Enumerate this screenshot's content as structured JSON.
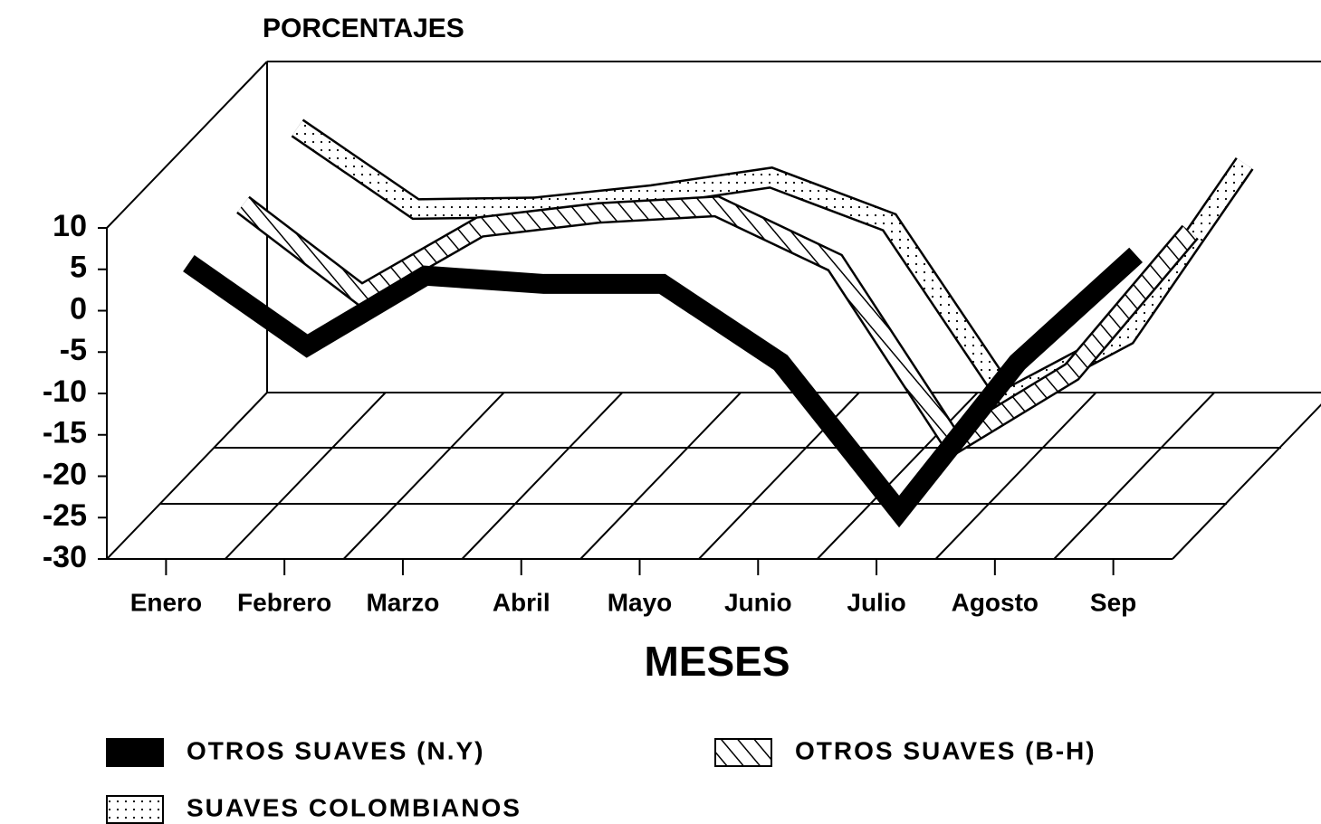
{
  "chart_data": {
    "type": "line3d",
    "title": "PORCENTAJES",
    "x_label": "MESES",
    "categories": [
      "Enero",
      "Febrero",
      "Marzo",
      "Abril",
      "Mayo",
      "Junio",
      "Julio",
      "Agosto",
      "Sep"
    ],
    "ylim": [
      -30,
      10
    ],
    "yticks": [
      10,
      5,
      0,
      -5,
      -10,
      -15,
      -20,
      -25,
      -30
    ],
    "series": [
      {
        "name": "OTROS SUAVES (N.Y)",
        "color": "#000000",
        "pattern": "solid",
        "values": [
          3,
          -7,
          1.5,
          0.5,
          0.5,
          -9,
          -27,
          -9,
          4
        ]
      },
      {
        "name": "OTROS SUAVES (B-H)",
        "color": "#000000",
        "pattern": "hatch",
        "values": [
          3.3,
          -7.6,
          0.6,
          2.3,
          3.1,
          -3.7,
          -25.6,
          -16.9,
          0
        ]
      },
      {
        "name": "SUAVES COLOMBIANOS",
        "color": "#000000",
        "pattern": "dots",
        "values": [
          5.8,
          -4,
          -3.8,
          -2.3,
          -0.2,
          -5.6,
          -26.9,
          -19.3,
          1.5
        ]
      }
    ]
  }
}
